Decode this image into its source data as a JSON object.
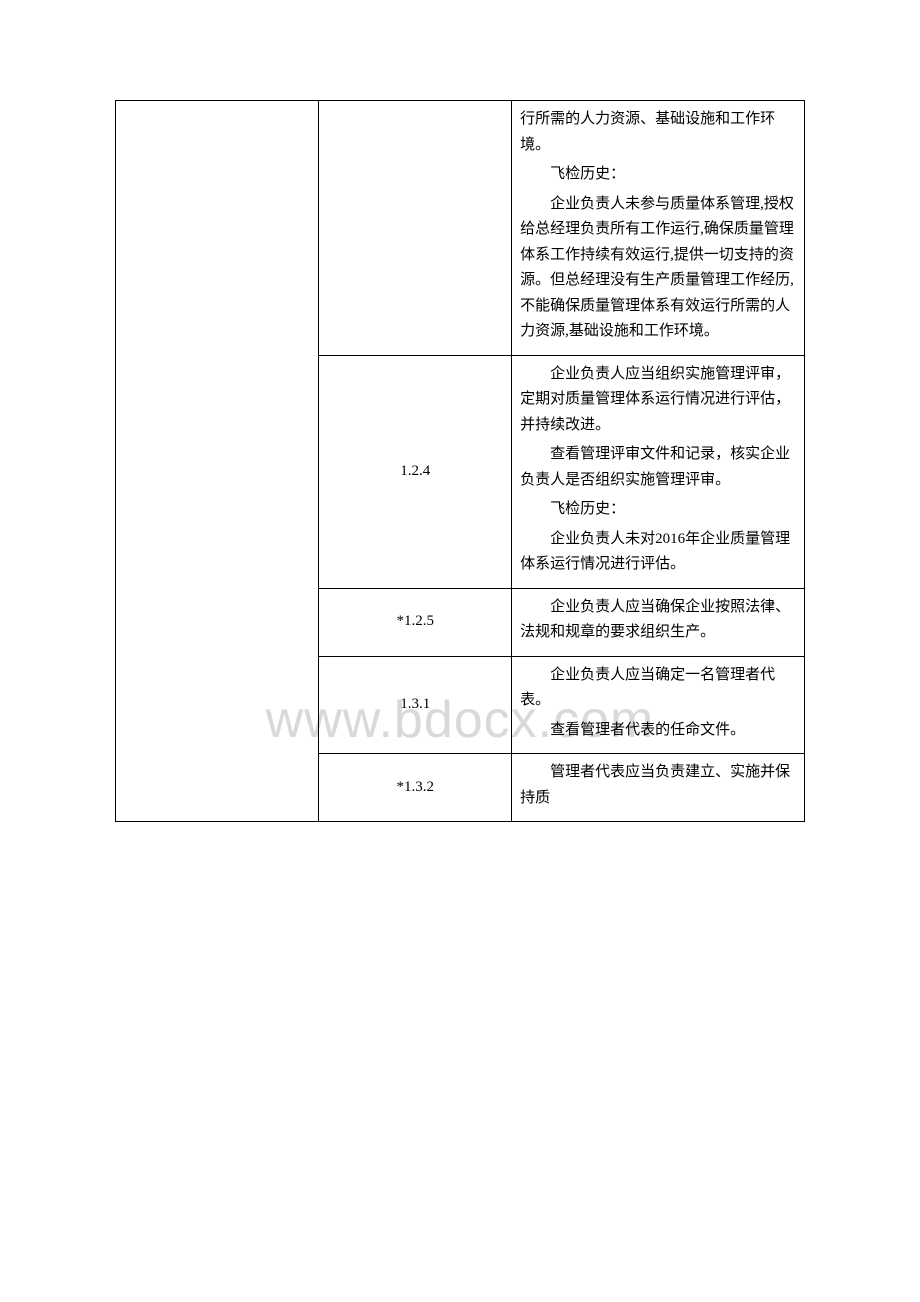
{
  "watermark": "www.bdocx.com",
  "rows": [
    {
      "code": "",
      "content": [
        {
          "text": "行所需的人力资源、基础设施和工作环境。",
          "indent": false
        },
        {
          "text": "飞检历史：",
          "indent": true
        },
        {
          "text": "企业负责人未参与质量体系管理,授权给总经理负责所有工作运行,确保质量管理体系工作持续有效运行,提供一切支持的资源。但总经理没有生产质量管理工作经历,不能确保质量管理体系有效运行所需的人力资源,基础设施和工作环境。",
          "indent": true
        }
      ]
    },
    {
      "code": "1.2.4",
      "content": [
        {
          "text": "企业负责人应当组织实施管理评审，定期对质量管理体系运行情况进行评估，并持续改进。",
          "indent": true
        },
        {
          "text": "查看管理评审文件和记录，核实企业负责人是否组织实施管理评审。",
          "indent": true
        },
        {
          "text": "飞检历史：",
          "indent": true
        },
        {
          "text": "企业负责人未对2016年企业质量管理体系运行情况进行评估。",
          "indent": true
        }
      ]
    },
    {
      "code": "*1.2.5",
      "content": [
        {
          "text": "企业负责人应当确保企业按照法律、法规和规章的要求组织生产。",
          "indent": true
        }
      ]
    },
    {
      "code": "1.3.1",
      "content": [
        {
          "text": "企业负责人应当确定一名管理者代表。",
          "indent": true
        },
        {
          "text": "查看管理者代表的任命文件。",
          "indent": true
        }
      ]
    },
    {
      "code": "*1.3.2",
      "content": [
        {
          "text": "管理者代表应当负责建立、实施并保持质",
          "indent": true
        }
      ]
    }
  ]
}
